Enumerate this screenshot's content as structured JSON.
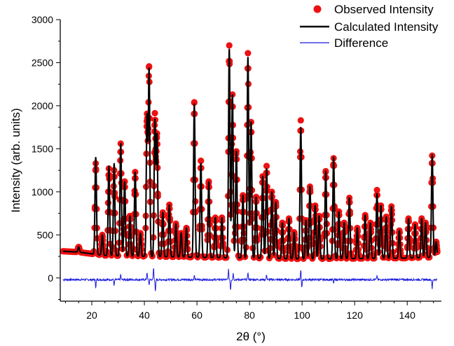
{
  "chart_data": {
    "type": "scatter",
    "title": "",
    "xlabel": "2θ (°)",
    "ylabel": "Intensity (arb. units)",
    "xlim": [
      8,
      153
    ],
    "ylim": [
      -270,
      3000
    ],
    "x_ticks": [
      20,
      40,
      60,
      80,
      100,
      120,
      140
    ],
    "y_ticks": [
      0,
      500,
      1000,
      1500,
      2000,
      2500,
      3000
    ],
    "grid": false,
    "legend_position": "top-right",
    "background_points": [
      [
        9,
        310
      ],
      [
        15,
        300
      ],
      [
        25,
        260
      ],
      [
        40,
        250
      ],
      [
        60,
        240
      ],
      [
        80,
        230
      ],
      [
        100,
        220
      ],
      [
        120,
        225
      ],
      [
        140,
        230
      ],
      [
        150,
        240
      ],
      [
        152,
        260
      ]
    ],
    "series": [
      {
        "name": "Observed Intensity",
        "style": "markers",
        "color": "#ee1111",
        "peaks": [
          [
            15.0,
            360
          ],
          [
            21.5,
            1330
          ],
          [
            24.0,
            500
          ],
          [
            26.5,
            1270
          ],
          [
            28.5,
            1250
          ],
          [
            31.0,
            1560
          ],
          [
            32.5,
            1120
          ],
          [
            34.5,
            720
          ],
          [
            36.5,
            1230
          ],
          [
            38.5,
            520
          ],
          [
            41.0,
            1870
          ],
          [
            41.8,
            2430
          ],
          [
            44.0,
            1890
          ],
          [
            44.8,
            1650
          ],
          [
            47.0,
            760
          ],
          [
            49.5,
            850
          ],
          [
            52.0,
            630
          ],
          [
            54.0,
            520
          ],
          [
            56.0,
            580
          ],
          [
            59.0,
            2040
          ],
          [
            61.5,
            1360
          ],
          [
            64.5,
            1120
          ],
          [
            67.0,
            700
          ],
          [
            69.5,
            700
          ],
          [
            72.3,
            2700
          ],
          [
            73.5,
            2130
          ],
          [
            75.0,
            1470
          ],
          [
            77.5,
            960
          ],
          [
            79.4,
            2610
          ],
          [
            80.6,
            1810
          ],
          [
            82.5,
            940
          ],
          [
            85.0,
            1180
          ],
          [
            86.5,
            1300
          ],
          [
            88.5,
            1000
          ],
          [
            90.0,
            880
          ],
          [
            92.5,
            640
          ],
          [
            95.0,
            690
          ],
          [
            97.0,
            530
          ],
          [
            99.5,
            1830
          ],
          [
            101.5,
            670
          ],
          [
            103.0,
            1060
          ],
          [
            105.0,
            840
          ],
          [
            106.5,
            720
          ],
          [
            109.0,
            1240
          ],
          [
            112.0,
            1390
          ],
          [
            114.0,
            770
          ],
          [
            116.0,
            640
          ],
          [
            118.0,
            930
          ],
          [
            121.0,
            580
          ],
          [
            124.0,
            730
          ],
          [
            126.0,
            640
          ],
          [
            128.5,
            1020
          ],
          [
            130.0,
            840
          ],
          [
            132.0,
            710
          ],
          [
            134.0,
            830
          ],
          [
            137.0,
            550
          ],
          [
            140.5,
            690
          ],
          [
            143.0,
            620
          ],
          [
            145.5,
            690
          ],
          [
            147.0,
            640
          ],
          [
            149.5,
            1420
          ],
          [
            151.0,
            420
          ]
        ]
      },
      {
        "name": "Calculated Intensity",
        "style": "line",
        "color": "#000000",
        "peaks": [
          [
            15.0,
            360
          ],
          [
            21.5,
            1400
          ],
          [
            24.0,
            500
          ],
          [
            26.5,
            1300
          ],
          [
            28.5,
            1330
          ],
          [
            31.0,
            1560
          ],
          [
            32.5,
            1120
          ],
          [
            34.5,
            720
          ],
          [
            36.5,
            1230
          ],
          [
            38.5,
            520
          ],
          [
            41.0,
            1870
          ],
          [
            41.8,
            2410
          ],
          [
            44.0,
            1820
          ],
          [
            44.8,
            1650
          ],
          [
            47.0,
            760
          ],
          [
            49.5,
            850
          ],
          [
            52.0,
            630
          ],
          [
            54.0,
            520
          ],
          [
            56.0,
            580
          ],
          [
            59.0,
            2020
          ],
          [
            61.5,
            1330
          ],
          [
            64.5,
            1120
          ],
          [
            67.0,
            700
          ],
          [
            69.5,
            700
          ],
          [
            72.3,
            2660
          ],
          [
            73.5,
            2130
          ],
          [
            75.0,
            1470
          ],
          [
            77.5,
            960
          ],
          [
            79.4,
            2560
          ],
          [
            80.6,
            1810
          ],
          [
            82.5,
            940
          ],
          [
            85.0,
            1180
          ],
          [
            86.5,
            1270
          ],
          [
            88.5,
            1000
          ],
          [
            90.0,
            880
          ],
          [
            92.5,
            640
          ],
          [
            95.0,
            690
          ],
          [
            97.0,
            530
          ],
          [
            99.5,
            1750
          ],
          [
            101.5,
            670
          ],
          [
            103.0,
            1060
          ],
          [
            105.0,
            840
          ],
          [
            106.5,
            720
          ],
          [
            109.0,
            1240
          ],
          [
            112.0,
            1400
          ],
          [
            114.0,
            770
          ],
          [
            116.0,
            640
          ],
          [
            118.0,
            930
          ],
          [
            121.0,
            580
          ],
          [
            124.0,
            730
          ],
          [
            126.0,
            640
          ],
          [
            128.5,
            980
          ],
          [
            130.0,
            840
          ],
          [
            132.0,
            710
          ],
          [
            134.0,
            830
          ],
          [
            137.0,
            550
          ],
          [
            140.5,
            690
          ],
          [
            143.0,
            620
          ],
          [
            145.5,
            690
          ],
          [
            147.0,
            640
          ],
          [
            149.5,
            1430
          ],
          [
            151.0,
            420
          ]
        ]
      },
      {
        "name": "Difference",
        "style": "line",
        "color": "#1a1adf",
        "baseline": -20,
        "spikes": [
          [
            21.5,
            -90
          ],
          [
            28.5,
            -70
          ],
          [
            31.0,
            60
          ],
          [
            41.0,
            90
          ],
          [
            41.8,
            -60
          ],
          [
            43.5,
            140
          ],
          [
            44.2,
            -150
          ],
          [
            59.0,
            50
          ],
          [
            72.0,
            120
          ],
          [
            72.8,
            -120
          ],
          [
            73.8,
            80
          ],
          [
            79.4,
            90
          ],
          [
            86.5,
            60
          ],
          [
            99.5,
            120
          ],
          [
            99.9,
            -100
          ],
          [
            112.0,
            -40
          ],
          [
            128.5,
            50
          ],
          [
            149.5,
            -110
          ]
        ]
      }
    ]
  }
}
